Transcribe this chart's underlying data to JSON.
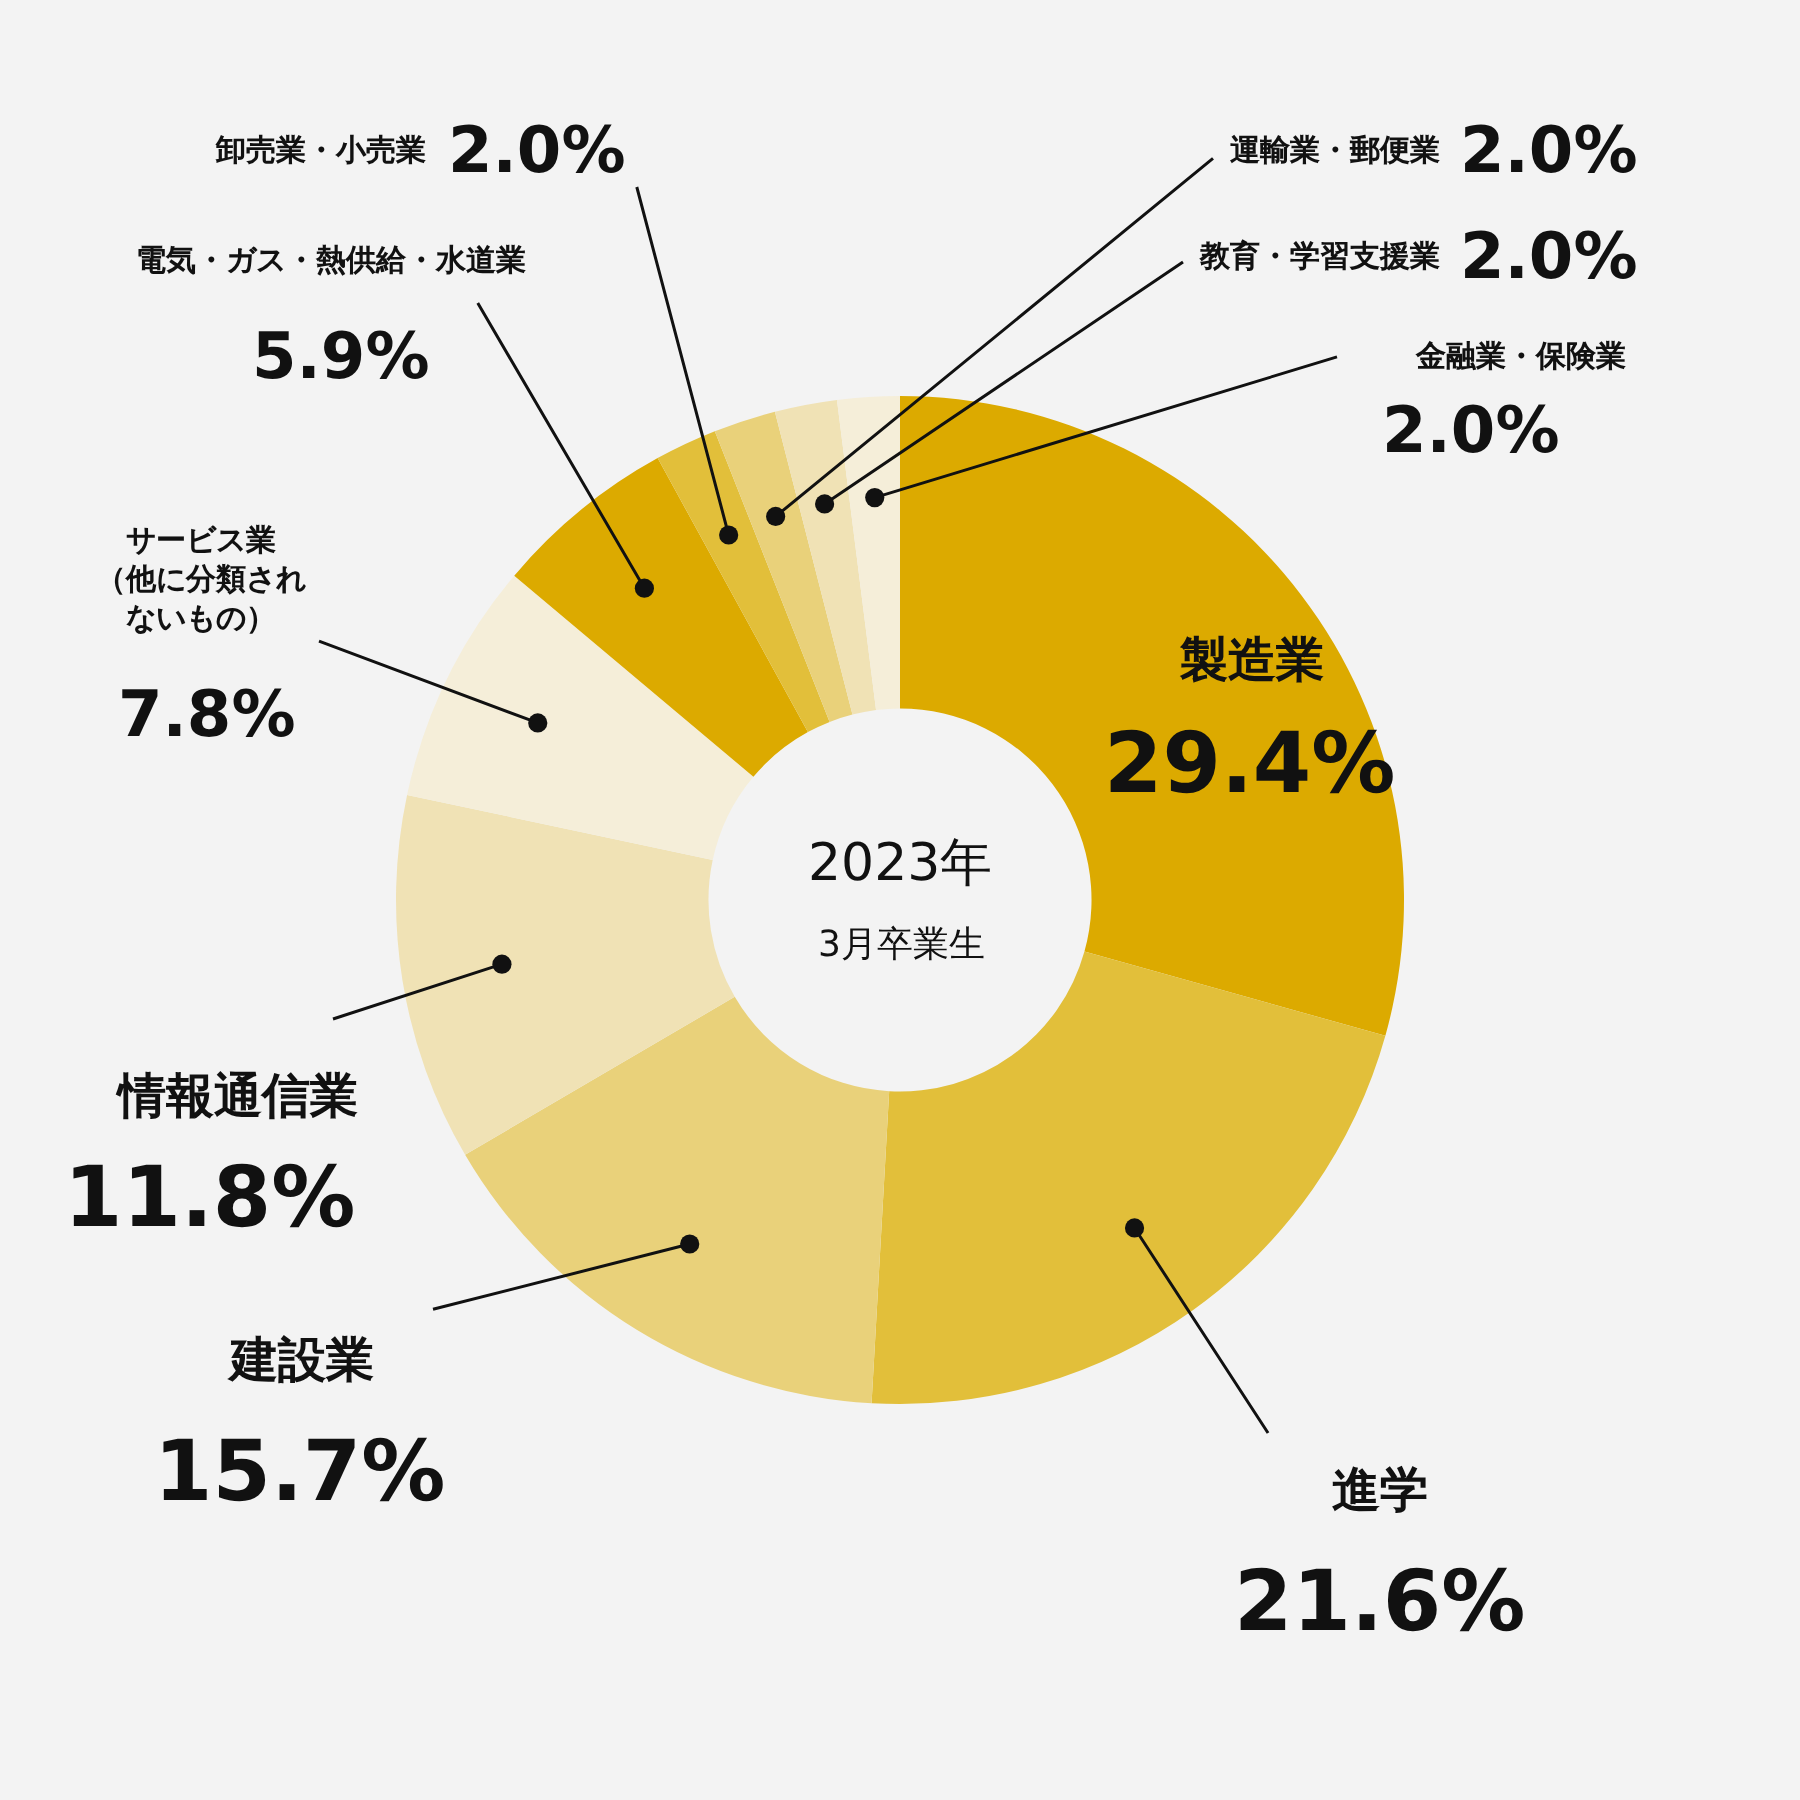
{
  "chart_data": {
    "type": "donut",
    "categories": [
      "製造業",
      "進学",
      "建設業",
      "情報通信業",
      "サービス業（他に分類されないもの）",
      "電気・ガス・熱供給・水道業",
      "卸売業・小売業",
      "運輸業・郵便業",
      "教育・学習支援業",
      "金融業・保険業"
    ],
    "values": [
      29.4,
      21.6,
      15.7,
      11.8,
      7.8,
      5.9,
      2.0,
      2.0,
      2.0,
      2.0
    ],
    "value_labels": [
      "29.4%",
      "21.6%",
      "15.7%",
      "11.8%",
      "7.8%",
      "5.9%",
      "2.0%",
      "2.0%",
      "2.0%",
      "2.0%"
    ],
    "colors": [
      "#dcaa00",
      "#e2bf3a",
      "#e9d17a",
      "#f0e2b5",
      "#f5eed9",
      "#dcaa00",
      "#e2bf3a",
      "#e9d17a",
      "#f0e2b5",
      "#f5eed9"
    ],
    "annotations": [
      "2023年",
      "3月卒業生"
    ]
  }
}
